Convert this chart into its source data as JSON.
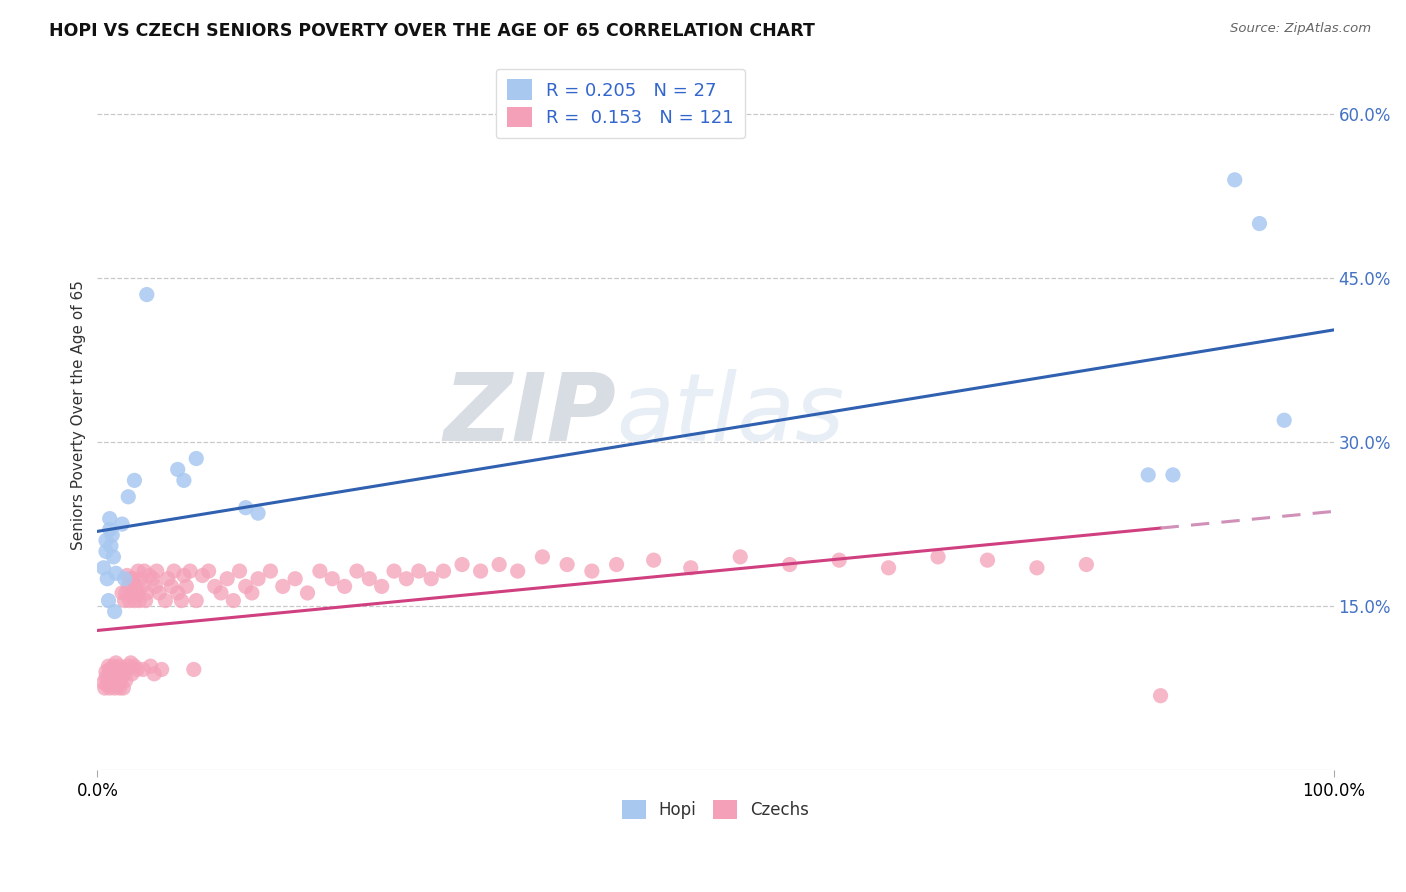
{
  "title": "HOPI VS CZECH SENIORS POVERTY OVER THE AGE OF 65 CORRELATION CHART",
  "source": "Source: ZipAtlas.com",
  "ylabel": "Seniors Poverty Over the Age of 65",
  "xlim": [
    0,
    1.0
  ],
  "ylim": [
    0,
    0.65
  ],
  "yticks": [
    0.15,
    0.3,
    0.45,
    0.6
  ],
  "ytick_labels": [
    "15.0%",
    "30.0%",
    "45.0%",
    "60.0%"
  ],
  "hopi_R": "0.205",
  "hopi_N": "27",
  "czech_R": "0.153",
  "czech_N": "121",
  "hopi_color": "#a8c8f0",
  "czech_color": "#f4a0b8",
  "hopi_line_color": "#3060b0",
  "czech_line_color": "#d04080",
  "czech_dash_color": "#d090b8",
  "background_color": "#ffffff",
  "grid_color": "#c8c8c8",
  "watermark_zi": "ZIP",
  "watermark_atlas": "atlas",
  "hopi_scatter_x": [
    0.005,
    0.007,
    0.007,
    0.008,
    0.009,
    0.01,
    0.01,
    0.011,
    0.012,
    0.013,
    0.014,
    0.015,
    0.02,
    0.022,
    0.025,
    0.03,
    0.04,
    0.065,
    0.07,
    0.08,
    0.12,
    0.13,
    0.85,
    0.87,
    0.92,
    0.94,
    0.96
  ],
  "hopi_scatter_y": [
    0.185,
    0.2,
    0.21,
    0.175,
    0.155,
    0.22,
    0.23,
    0.205,
    0.215,
    0.195,
    0.145,
    0.18,
    0.225,
    0.175,
    0.25,
    0.265,
    0.435,
    0.275,
    0.265,
    0.285,
    0.24,
    0.235,
    0.27,
    0.27,
    0.54,
    0.5,
    0.32
  ],
  "czech_scatter_x": [
    0.005,
    0.006,
    0.007,
    0.007,
    0.008,
    0.009,
    0.009,
    0.01,
    0.01,
    0.01,
    0.011,
    0.011,
    0.012,
    0.012,
    0.013,
    0.013,
    0.014,
    0.014,
    0.015,
    0.015,
    0.016,
    0.016,
    0.017,
    0.017,
    0.018,
    0.018,
    0.019,
    0.019,
    0.02,
    0.02,
    0.021,
    0.021,
    0.022,
    0.022,
    0.023,
    0.023,
    0.024,
    0.025,
    0.025,
    0.026,
    0.027,
    0.027,
    0.028,
    0.028,
    0.029,
    0.03,
    0.03,
    0.031,
    0.032,
    0.033,
    0.033,
    0.034,
    0.035,
    0.036,
    0.037,
    0.038,
    0.039,
    0.04,
    0.042,
    0.043,
    0.045,
    0.046,
    0.047,
    0.048,
    0.05,
    0.052,
    0.055,
    0.057,
    0.06,
    0.062,
    0.065,
    0.068,
    0.07,
    0.072,
    0.075,
    0.078,
    0.08,
    0.085,
    0.09,
    0.095,
    0.1,
    0.105,
    0.11,
    0.115,
    0.12,
    0.125,
    0.13,
    0.14,
    0.15,
    0.16,
    0.17,
    0.18,
    0.19,
    0.2,
    0.21,
    0.22,
    0.23,
    0.24,
    0.25,
    0.26,
    0.27,
    0.28,
    0.295,
    0.31,
    0.325,
    0.34,
    0.36,
    0.38,
    0.4,
    0.42,
    0.45,
    0.48,
    0.52,
    0.56,
    0.6,
    0.64,
    0.68,
    0.72,
    0.76,
    0.8,
    0.86
  ],
  "czech_scatter_y": [
    0.08,
    0.075,
    0.085,
    0.09,
    0.078,
    0.082,
    0.095,
    0.088,
    0.092,
    0.075,
    0.085,
    0.092,
    0.078,
    0.088,
    0.082,
    0.095,
    0.075,
    0.09,
    0.082,
    0.098,
    0.085,
    0.092,
    0.078,
    0.088,
    0.095,
    0.075,
    0.09,
    0.082,
    0.088,
    0.162,
    0.075,
    0.092,
    0.088,
    0.155,
    0.082,
    0.162,
    0.178,
    0.095,
    0.168,
    0.155,
    0.175,
    0.098,
    0.162,
    0.088,
    0.175,
    0.095,
    0.155,
    0.168,
    0.092,
    0.162,
    0.182,
    0.155,
    0.175,
    0.168,
    0.092,
    0.182,
    0.155,
    0.162,
    0.178,
    0.095,
    0.175,
    0.088,
    0.168,
    0.182,
    0.162,
    0.092,
    0.155,
    0.175,
    0.168,
    0.182,
    0.162,
    0.155,
    0.178,
    0.168,
    0.182,
    0.092,
    0.155,
    0.178,
    0.182,
    0.168,
    0.162,
    0.175,
    0.155,
    0.182,
    0.168,
    0.162,
    0.175,
    0.182,
    0.168,
    0.175,
    0.162,
    0.182,
    0.175,
    0.168,
    0.182,
    0.175,
    0.168,
    0.182,
    0.175,
    0.182,
    0.175,
    0.182,
    0.188,
    0.182,
    0.188,
    0.182,
    0.195,
    0.188,
    0.182,
    0.188,
    0.192,
    0.185,
    0.195,
    0.188,
    0.192,
    0.185,
    0.195,
    0.192,
    0.185,
    0.188,
    0.068
  ]
}
